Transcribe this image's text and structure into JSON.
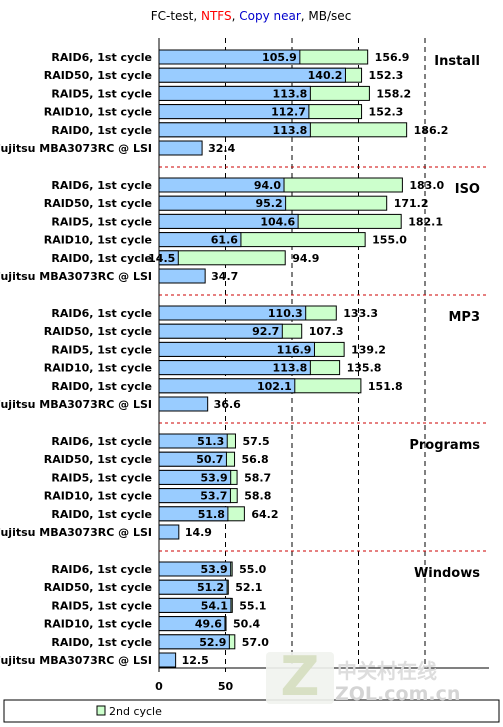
{
  "chart_data": {
    "type": "bar",
    "orientation": "horizontal",
    "title_parts": [
      {
        "text": "FC-test, ",
        "color": "#000000"
      },
      {
        "text": "NTFS",
        "color": "#ff0000"
      },
      {
        "text": ", ",
        "color": "#000000"
      },
      {
        "text": "Copy near",
        "color": "#0000cc"
      },
      {
        "text": ", MB/sec",
        "color": "#000000"
      }
    ],
    "categories": [
      "RAID6, 1st cycle",
      "RAID50, 1st cycle",
      "RAID5, 1st cycle",
      "RAID10, 1st cycle",
      "RAID0, 1st cycle",
      "Fujitsu MBA3073RC @ LSI"
    ],
    "groups": [
      {
        "name": "Install",
        "first": [
          105.9,
          140.2,
          113.8,
          112.7,
          113.8,
          32.4
        ],
        "second": [
          156.9,
          152.3,
          158.2,
          152.3,
          186.2,
          null
        ]
      },
      {
        "name": "ISO",
        "first": [
          94.0,
          95.2,
          104.6,
          61.6,
          14.5,
          34.7
        ],
        "second": [
          183.0,
          171.2,
          182.1,
          155.0,
          94.9,
          null
        ]
      },
      {
        "name": "MP3",
        "first": [
          110.3,
          92.7,
          116.9,
          113.8,
          102.1,
          36.6
        ],
        "second": [
          133.3,
          107.3,
          139.2,
          135.8,
          151.8,
          null
        ]
      },
      {
        "name": "Programs",
        "first": [
          51.3,
          50.7,
          53.9,
          53.7,
          51.8,
          14.9
        ],
        "second": [
          57.5,
          56.8,
          58.7,
          58.8,
          64.2,
          null
        ]
      },
      {
        "name": "Windows",
        "first": [
          53.9,
          51.2,
          54.1,
          49.6,
          52.9,
          12.5
        ],
        "second": [
          55.0,
          52.1,
          55.1,
          50.4,
          57,
          null
        ]
      }
    ],
    "x_ticks": [
      "0",
      "50"
    ],
    "grid": true,
    "legend_entries": [
      "2nd cycle"
    ],
    "colors": {
      "first": "#99ccff",
      "second": "#ccffcc",
      "separator": "#cc0000"
    }
  },
  "watermark": {
    "logo_letter": "Z",
    "chinese": "中关村在线",
    "domain": "ZOL.com.cn"
  }
}
